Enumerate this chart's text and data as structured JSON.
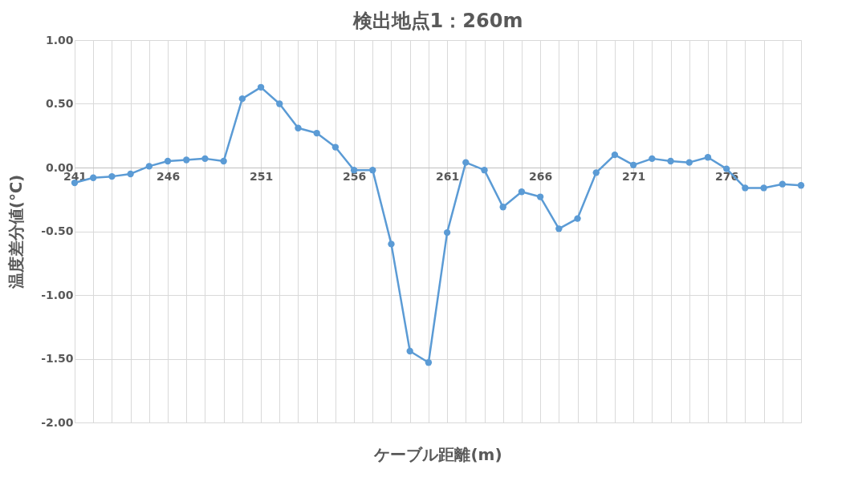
{
  "chart_data": {
    "type": "line",
    "title": "検出地点1：260m",
    "xlabel": "ケーブル距離(m)",
    "ylabel": "温度差分値(℃)",
    "categories": [
      "241",
      null,
      null,
      null,
      null,
      "246",
      null,
      null,
      null,
      null,
      "251",
      null,
      null,
      null,
      null,
      "256",
      null,
      null,
      null,
      null,
      "261",
      null,
      null,
      null,
      null,
      "266",
      null,
      null,
      null,
      null,
      "271",
      null,
      null,
      null,
      null,
      "276",
      null,
      null,
      null,
      null
    ],
    "series": [
      {
        "color": "#5b9bd5",
        "values": [
          -0.12,
          -0.08,
          -0.07,
          -0.05,
          0.01,
          0.05,
          0.06,
          0.07,
          0.05,
          0.54,
          0.63,
          0.5,
          0.31,
          0.27,
          0.16,
          -0.02,
          -0.02,
          -0.6,
          -1.44,
          -1.53,
          -0.51,
          0.04,
          -0.02,
          -0.31,
          -0.19,
          -0.23,
          -0.48,
          -0.4,
          -0.04,
          0.1,
          0.02,
          0.07,
          0.05,
          0.04,
          0.08,
          -0.01,
          -0.16,
          -0.16,
          -0.13,
          -0.14
        ]
      }
    ],
    "ylim": [
      -2,
      1
    ],
    "yticks": [
      {
        "value": -2,
        "label": "-2.00"
      },
      {
        "value": -1.5,
        "label": "-1.50"
      },
      {
        "value": -1,
        "label": "-1.00"
      },
      {
        "value": -0.5,
        "label": "-0.50"
      },
      {
        "value": 0,
        "label": "0.00"
      },
      {
        "value": 0.5,
        "label": "0.50"
      },
      {
        "value": 1,
        "label": "1.00"
      }
    ],
    "grid": true,
    "marker": "circle",
    "line_style": "solid"
  }
}
